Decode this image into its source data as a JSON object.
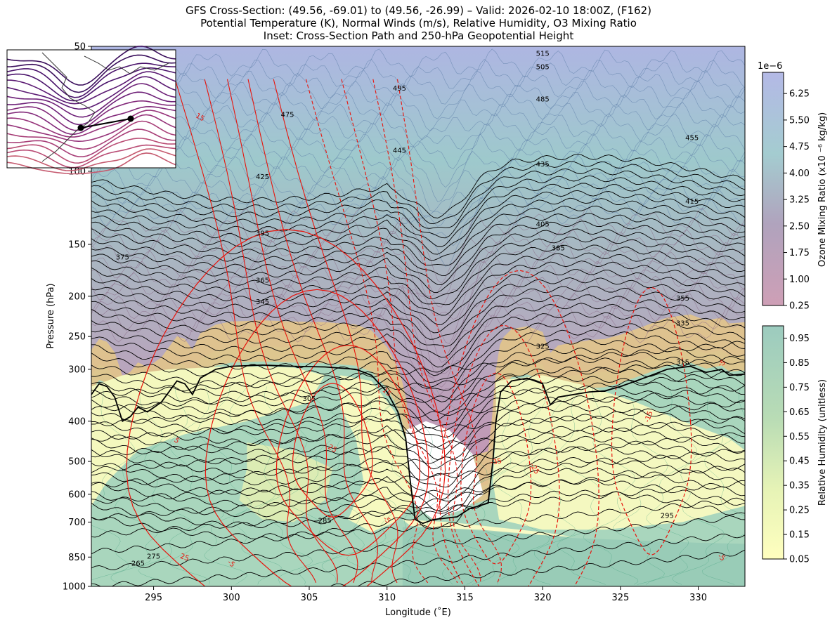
{
  "titles": {
    "line1": "GFS Cross-Section: (49.56, -69.01) to (49.56, -26.99) – Valid: 2026-02-10 18:00Z, (F162)",
    "line2": "Potential Temperature (K), Normal Winds (m/s), Relative Humidity, O3 Mixing Ratio",
    "line3": "Inset: Cross-Section Path and 250-hPa Geopotential Height"
  },
  "chart_data": {
    "type": "heatmap",
    "xlabel": "Longitude (˚E)",
    "ylabel": "Pressure (hPa)",
    "xlim": [
      291,
      333
    ],
    "ylim": [
      1000,
      50
    ],
    "yscale": "log",
    "x_ticks": [
      295,
      300,
      305,
      310,
      315,
      320,
      325,
      330
    ],
    "y_ticks": [
      1000,
      850,
      700,
      600,
      500,
      400,
      300,
      250,
      200,
      150,
      100,
      50
    ],
    "theta_labels": [
      {
        "value": "515",
        "lon": 320.0,
        "p": 52
      },
      {
        "value": "505",
        "lon": 320.0,
        "p": 56
      },
      {
        "value": "495",
        "lon": 310.8,
        "p": 63
      },
      {
        "value": "485",
        "lon": 320.0,
        "p": 67
      },
      {
        "value": "475",
        "lon": 303.6,
        "p": 73
      },
      {
        "value": "455",
        "lon": 329.6,
        "p": 83
      },
      {
        "value": "445",
        "lon": 310.8,
        "p": 89
      },
      {
        "value": "435",
        "lon": 320.0,
        "p": 96
      },
      {
        "value": "425",
        "lon": 302.0,
        "p": 103
      },
      {
        "value": "415",
        "lon": 329.6,
        "p": 118
      },
      {
        "value": "405",
        "lon": 320.0,
        "p": 134
      },
      {
        "value": "395",
        "lon": 302.0,
        "p": 141
      },
      {
        "value": "385",
        "lon": 321.0,
        "p": 153
      },
      {
        "value": "375",
        "lon": 293.0,
        "p": 161
      },
      {
        "value": "365",
        "lon": 302.0,
        "p": 183
      },
      {
        "value": "345",
        "lon": 302.0,
        "p": 206
      },
      {
        "value": "355",
        "lon": 329.0,
        "p": 202
      },
      {
        "value": "335",
        "lon": 329.0,
        "p": 232
      },
      {
        "value": "325",
        "lon": 320.0,
        "p": 264
      },
      {
        "value": "315",
        "lon": 329.0,
        "p": 288
      },
      {
        "value": "305",
        "lon": 305.0,
        "p": 353
      },
      {
        "value": "295",
        "lon": 328.0,
        "p": 675
      },
      {
        "value": "285",
        "lon": 306.0,
        "p": 693
      },
      {
        "value": "275",
        "lon": 295.0,
        "p": 846
      },
      {
        "value": "265",
        "lon": 294.0,
        "p": 880
      }
    ],
    "wind_labels": [
      {
        "value": "15",
        "lon": 298.0,
        "p": 74,
        "rot": 30
      },
      {
        "value": "15",
        "lon": 310.0,
        "p": 340,
        "rot": 40
      },
      {
        "value": "25",
        "lon": 306.5,
        "p": 465,
        "rot": 30
      },
      {
        "value": "-35",
        "lon": 317.0,
        "p": 500,
        "rot": -10
      },
      {
        "value": "-25",
        "lon": 319.5,
        "p": 520,
        "rot": 60
      },
      {
        "value": "-15",
        "lon": 326.8,
        "p": 390,
        "rot": -70
      },
      {
        "value": "-5",
        "lon": 331.5,
        "p": 290,
        "rot": -30
      },
      {
        "value": "-5",
        "lon": 331.5,
        "p": 850,
        "rot": 40
      },
      {
        "value": "-5",
        "lon": 310.0,
        "p": 690,
        "rot": 40
      },
      {
        "value": "5",
        "lon": 296.5,
        "p": 445,
        "rot": 40
      },
      {
        "value": "-5",
        "lon": 300.0,
        "p": 880,
        "rot": 40
      },
      {
        "value": "25",
        "lon": 297.0,
        "p": 850,
        "rot": 20
      }
    ],
    "tropopause": [
      [
        291,
        345
      ],
      [
        291.5,
        325
      ],
      [
        292,
        330
      ],
      [
        292.5,
        350
      ],
      [
        293,
        400
      ],
      [
        293.5,
        390
      ],
      [
        294,
        370
      ],
      [
        294.6,
        380
      ],
      [
        295.5,
        360
      ],
      [
        296.5,
        320
      ],
      [
        297,
        325
      ],
      [
        297.5,
        345
      ],
      [
        298,
        315
      ],
      [
        299,
        300
      ],
      [
        300,
        295
      ],
      [
        302,
        293
      ],
      [
        304,
        295
      ],
      [
        306,
        296
      ],
      [
        308,
        300
      ],
      [
        309,
        310
      ],
      [
        310,
        340
      ],
      [
        310.7,
        380
      ],
      [
        311.2,
        440
      ],
      [
        311.5,
        560
      ],
      [
        311.8,
        690
      ],
      [
        312.3,
        705
      ],
      [
        313,
        690
      ],
      [
        314.5,
        680
      ],
      [
        315.3,
        650
      ],
      [
        316.5,
        630
      ],
      [
        316.8,
        500
      ],
      [
        317,
        400
      ],
      [
        317.3,
        340
      ],
      [
        318,
        320
      ],
      [
        319,
        315
      ],
      [
        320,
        325
      ],
      [
        320.5,
        365
      ],
      [
        321,
        350
      ],
      [
        322,
        345
      ],
      [
        323,
        340
      ],
      [
        324,
        338
      ],
      [
        325,
        330
      ],
      [
        326,
        320
      ],
      [
        327,
        310
      ],
      [
        328,
        300
      ],
      [
        329.5,
        295
      ],
      [
        330.5,
        305
      ],
      [
        331.5,
        300
      ],
      [
        332,
        310
      ],
      [
        333,
        308
      ]
    ],
    "ozone_colorbar": {
      "label": "Ozone Mixing Ratio (x10 ⁻⁶ kg/kg)",
      "exponent": "1e−6",
      "ticks": [
        "0.25",
        "1.00",
        "1.75",
        "2.50",
        "3.25",
        "4.00",
        "4.75",
        "5.50",
        "6.25"
      ],
      "range": [
        0.25,
        6.85
      ],
      "colors": [
        "#ce9fb6",
        "#b0a3bd",
        "#a4ccd0",
        "#b4b9e6"
      ]
    },
    "rh_colorbar": {
      "label": "Relative Humidity (unitless)",
      "ticks": [
        "0.05",
        "0.15",
        "0.25",
        "0.35",
        "0.45",
        "0.55",
        "0.65",
        "0.75",
        "0.85",
        "0.95"
      ],
      "range": [
        0.05,
        1.0
      ],
      "colors": [
        "#ffffbf",
        "#d9efb0",
        "#a8d8b9",
        "#9ccbbf"
      ]
    },
    "inset": {
      "path_start": [
        -69.01,
        49.56
      ],
      "path_end": [
        -26.99,
        49.56
      ]
    }
  }
}
